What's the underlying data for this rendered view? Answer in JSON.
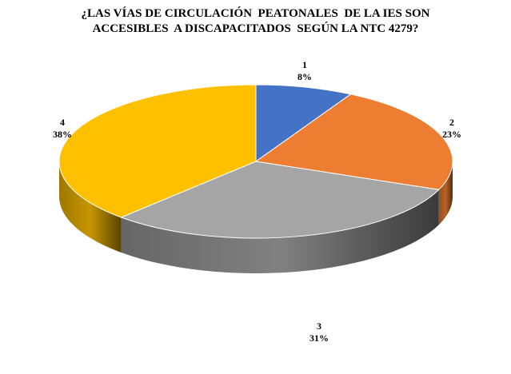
{
  "chart_data": {
    "type": "pie",
    "title_lines": [
      "¿LAS VÍAS DE CIRCULACIÓN  PEATONALES  DE LA IES SON",
      "ACCESIBLES  A DISCAPACITADOS  SEGÚN LA NTC 4279?"
    ],
    "categories": [
      "1",
      "2",
      "3",
      "4"
    ],
    "values": [
      8,
      23,
      31,
      38
    ],
    "value_labels": [
      "8%",
      "23%",
      "31%",
      "38%"
    ],
    "colors": [
      "#4472c4",
      "#ed7d31",
      "#a5a5a5",
      "#ffc000"
    ],
    "legend": "none",
    "style": "3d"
  }
}
